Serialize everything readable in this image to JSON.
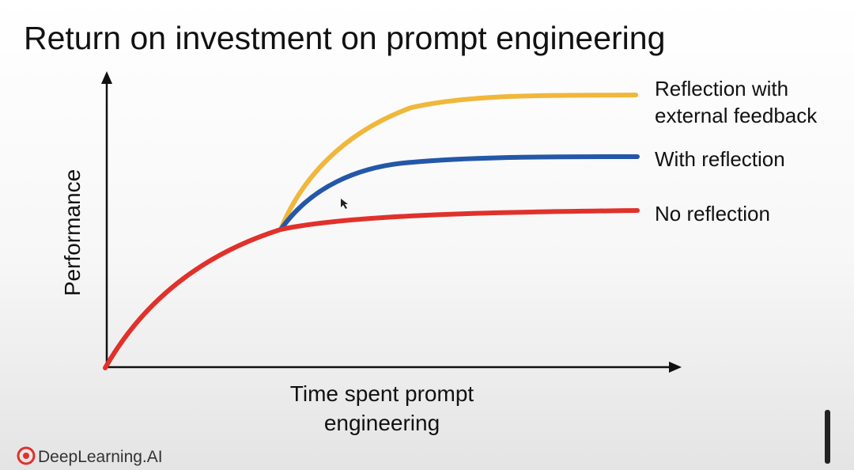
{
  "title": "Return on investment on prompt engineering",
  "y_axis_label": "Performance",
  "x_axis_label": [
    "Time spent prompt",
    "engineering"
  ],
  "curves": [
    {
      "label": [
        "Reflection with",
        "external feedback"
      ],
      "color": "#f0b73a"
    },
    {
      "label": [
        "With reflection"
      ],
      "color": "#2457a8"
    },
    {
      "label": [
        "No reflection"
      ],
      "color": "#e0312b"
    }
  ],
  "logo": "DeepLearning.AI"
}
